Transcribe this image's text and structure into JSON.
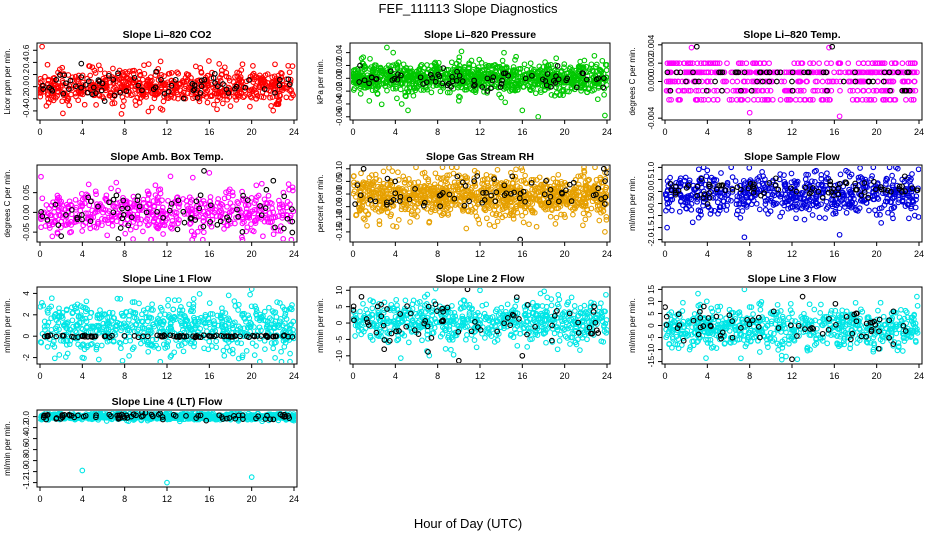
{
  "figure": {
    "title": "FEF_111113  Slope Diagnostics",
    "xlabel": "Hour of Day (UTC)"
  },
  "chart_data": [
    {
      "type": "scatter",
      "title": "Slope Li–820 CO2",
      "ylabel": "Licor ppm per min.",
      "xlabel": "",
      "xlim": [
        0,
        24
      ],
      "xticks": [
        "0",
        "4",
        "8",
        "12",
        "16",
        "20",
        "24"
      ],
      "ylim": [
        -0.55,
        0.72
      ],
      "yticks": [
        {
          "v": -0.4,
          "l": "-0.4"
        },
        {
          "v": -0.2,
          "l": "-0.2"
        },
        {
          "v": 0,
          "l": "0.0"
        },
        {
          "v": 0.2,
          "l": "0.2"
        },
        {
          "v": 0.4,
          "l": "0.4"
        },
        {
          "v": 0.6,
          "l": "0.6"
        }
      ],
      "grid": false,
      "series": [
        {
          "color": "#ff0000",
          "n": 650,
          "center": 0.0,
          "spread": 0.15,
          "shape": "normal",
          "outliers": [
            [
              0.2,
              0.66
            ],
            [
              7.7,
              -0.45
            ],
            [
              18.0,
              -0.32
            ]
          ]
        },
        {
          "color": "#000000",
          "n": 70,
          "center": 0.02,
          "spread": 0.1,
          "shape": "normal",
          "outliers": [
            [
              3.9,
              0.38
            ]
          ]
        }
      ]
    },
    {
      "type": "scatter",
      "title": "Slope Li–820 Pressure",
      "ylabel": "kPa per min.",
      "xlabel": "",
      "xlim": [
        0,
        24
      ],
      "xticks": [
        "0",
        "4",
        "8",
        "12",
        "16",
        "20",
        "24"
      ],
      "ylim": [
        -0.065,
        0.055
      ],
      "yticks": [
        {
          "v": -0.06,
          "l": "-0.06"
        },
        {
          "v": -0.04,
          "l": "-0.04"
        },
        {
          "v": -0.02,
          "l": "-0.02"
        },
        {
          "v": 0,
          "l": "0.00"
        },
        {
          "v": 0.02,
          "l": "0.02"
        },
        {
          "v": 0.04,
          "l": "0.04"
        }
      ],
      "grid": false,
      "series": [
        {
          "color": "#00c800",
          "n": 1000,
          "center": 0.0,
          "spread": 0.012,
          "shape": "normal",
          "outliers": [
            [
              3.2,
              0.048
            ],
            [
              3.8,
              0.04
            ],
            [
              4.6,
              -0.04
            ],
            [
              5.2,
              -0.05
            ],
            [
              10.0,
              -0.035
            ],
            [
              14.0,
              -0.03
            ],
            [
              16.0,
              -0.05
            ],
            [
              17.5,
              -0.06
            ],
            [
              23.8,
              -0.058
            ]
          ]
        },
        {
          "color": "#000000",
          "n": 70,
          "center": 0.0,
          "spread": 0.008,
          "shape": "normal",
          "outliers": []
        }
      ]
    },
    {
      "type": "scatter",
      "title": "Slope Li–820 Temp.",
      "ylabel": "degrees C per min.",
      "xlabel": "",
      "xlim": [
        0,
        24
      ],
      "xticks": [
        "0",
        "4",
        "8",
        "12",
        "16",
        "20",
        "24"
      ],
      "ylim": [
        -0.0042,
        0.0042
      ],
      "yticks": [
        {
          "v": -0.004,
          "l": "-0.004"
        },
        {
          "v": 0,
          "l": "0.000"
        },
        {
          "v": 0.002,
          "l": "0.002"
        },
        {
          "v": 0.004,
          "l": "0.004"
        }
      ],
      "grid": false,
      "series": [
        {
          "color": "#ff00ff",
          "n": 520,
          "center": 0.0,
          "spread": 0.0012,
          "shape": "levels",
          "levels": [
            0.001,
            0.0,
            -0.001,
            0.002,
            -0.002
          ],
          "outliers": [
            [
              2.5,
              0.0037
            ],
            [
              8.0,
              -0.0034
            ],
            [
              16.5,
              -0.0038
            ],
            [
              15.5,
              0.0037
            ]
          ]
        },
        {
          "color": "#000000",
          "n": 60,
          "center": 0.0,
          "spread": 0.001,
          "shape": "levels",
          "levels": [
            0.001,
            0.0,
            -0.001
          ],
          "outliers": [
            [
              3.0,
              0.0038
            ],
            [
              15.8,
              0.0038
            ]
          ]
        }
      ]
    },
    {
      "type": "scatter",
      "title": "Slope Amb. Box Temp.",
      "ylabel": "degrees C per min.",
      "xlabel": "",
      "xlim": [
        0,
        24
      ],
      "xticks": [
        "0",
        "4",
        "8",
        "12",
        "16",
        "20",
        "24"
      ],
      "ylim": [
        -0.075,
        0.12
      ],
      "yticks": [
        {
          "v": -0.05,
          "l": "-0.05"
        },
        {
          "v": 0,
          "l": "0.00"
        },
        {
          "v": 0.05,
          "l": "0.05"
        }
      ],
      "grid": false,
      "series": [
        {
          "color": "#ff00ff",
          "n": 520,
          "center": 0.0,
          "spread": 0.03,
          "shape": "normal",
          "outliers": [
            [
              16.0,
              0.1
            ]
          ]
        },
        {
          "color": "#000000",
          "n": 70,
          "center": 0.0,
          "spread": 0.025,
          "shape": "normal",
          "outliers": [
            [
              2.0,
              -0.06
            ],
            [
              15.5,
              0.105
            ]
          ]
        }
      ]
    },
    {
      "type": "scatter",
      "title": "Slope Gas Stream RH",
      "ylabel": "percent per min.",
      "xlabel": "",
      "xlim": [
        0,
        24
      ],
      "xticks": [
        "0",
        "4",
        "8",
        "12",
        "16",
        "20",
        "24"
      ],
      "ylim": [
        -0.19,
        0.115
      ],
      "yticks": [
        {
          "v": -0.15,
          "l": "-0.15"
        },
        {
          "v": -0.1,
          "l": "-0.10"
        },
        {
          "v": -0.05,
          "l": "-0.05"
        },
        {
          "v": 0,
          "l": "0.00"
        },
        {
          "v": 0.05,
          "l": "0.05"
        },
        {
          "v": 0.1,
          "l": "0.10"
        }
      ],
      "grid": false,
      "series": [
        {
          "color": "#e6a000",
          "n": 1000,
          "center": -0.01,
          "spread": 0.045,
          "shape": "normal",
          "outliers": [
            [
              23.8,
              -0.15
            ],
            [
              2.5,
              -0.12
            ]
          ]
        },
        {
          "color": "#000000",
          "n": 70,
          "center": 0.0,
          "spread": 0.035,
          "shape": "normal",
          "outliers": [
            [
              15.8,
              -0.18
            ],
            [
              1.0,
              0.1
            ],
            [
              23.7,
              0.1
            ]
          ]
        }
      ]
    },
    {
      "type": "scatter",
      "title": "Slope Sample Flow",
      "ylabel": "ml/min per min.",
      "xlabel": "",
      "xlim": [
        0,
        24
      ],
      "xticks": [
        "0",
        "4",
        "8",
        "12",
        "16",
        "20",
        "24"
      ],
      "ylim": [
        -2.1,
        1.1
      ],
      "yticks": [
        {
          "v": -2,
          "l": "-2.0"
        },
        {
          "v": -1.5,
          "l": "-1.5"
        },
        {
          "v": -1,
          "l": "-1.0"
        },
        {
          "v": -0.5,
          "l": "-0.5"
        },
        {
          "v": 0,
          "l": "0.0"
        },
        {
          "v": 0.5,
          "l": "0.5"
        },
        {
          "v": 1,
          "l": "1.0"
        }
      ],
      "grid": false,
      "series": [
        {
          "color": "#0000dd",
          "n": 620,
          "center": -0.1,
          "spread": 0.45,
          "shape": "normal",
          "outliers": [
            [
              7.5,
              -1.9
            ],
            [
              16.5,
              -1.8
            ],
            [
              22.0,
              0.95
            ],
            [
              0.2,
              -1.5
            ]
          ]
        },
        {
          "color": "#000000",
          "n": 80,
          "center": 0.1,
          "spread": 0.2,
          "shape": "normal",
          "outliers": []
        }
      ]
    },
    {
      "type": "scatter",
      "title": "Slope Line 1 Flow",
      "ylabel": "ml/min per min.",
      "xlabel": "",
      "xlim": [
        0,
        24
      ],
      "xticks": [
        "0",
        "4",
        "8",
        "12",
        "16",
        "20",
        "24"
      ],
      "ylim": [
        -2.6,
        4.6
      ],
      "yticks": [
        {
          "v": -2,
          "l": "-2"
        },
        {
          "v": 0,
          "l": "0"
        },
        {
          "v": 2,
          "l": "2"
        },
        {
          "v": 4,
          "l": "4"
        }
      ],
      "grid": false,
      "series": [
        {
          "color": "#00e6e6",
          "n": 650,
          "center": 0.8,
          "spread": 1.2,
          "shape": "normal",
          "outliers": [
            [
              20.0,
              4.4
            ],
            [
              7.8,
              -2.3
            ],
            [
              4.0,
              -2.0
            ]
          ]
        },
        {
          "color": "#000000",
          "n": 90,
          "center": 0.0,
          "spread": 0.06,
          "shape": "normal",
          "outliers": []
        }
      ]
    },
    {
      "type": "scatter",
      "title": "Slope Line 2 Flow",
      "ylabel": "ml/min per min.",
      "xlabel": "",
      "xlim": [
        0,
        24
      ],
      "xticks": [
        "0",
        "4",
        "8",
        "12",
        "16",
        "20",
        "24"
      ],
      "ylim": [
        -12.5,
        11
      ],
      "yticks": [
        {
          "v": -10,
          "l": "-10"
        },
        {
          "v": -5,
          "l": "-5"
        },
        {
          "v": 0,
          "l": "0"
        },
        {
          "v": 5,
          "l": "5"
        },
        {
          "v": 10,
          "l": "10"
        }
      ],
      "grid": false,
      "series": [
        {
          "color": "#00e6e6",
          "n": 650,
          "center": 0.5,
          "spread": 3.2,
          "shape": "normal",
          "outliers": [
            [
              7.8,
              10.5
            ],
            [
              12.0,
              10.0
            ]
          ]
        },
        {
          "color": "#000000",
          "n": 70,
          "center": 0.5,
          "spread": 3.2,
          "shape": "normal",
          "outliers": [
            [
              10.0,
              -11.5
            ],
            [
              0.8,
              8.0
            ],
            [
              16.0,
              -10.0
            ]
          ]
        }
      ]
    },
    {
      "type": "scatter",
      "title": "Slope Line 3 Flow",
      "ylabel": "ml/min per min.",
      "xlabel": "",
      "xlim": [
        0,
        24
      ],
      "xticks": [
        "0",
        "4",
        "8",
        "12",
        "16",
        "20",
        "24"
      ],
      "ylim": [
        -16,
        16
      ],
      "yticks": [
        {
          "v": -15,
          "l": "-15"
        },
        {
          "v": -10,
          "l": "-10"
        },
        {
          "v": -5,
          "l": "-5"
        },
        {
          "v": 0,
          "l": "0"
        },
        {
          "v": 5,
          "l": "5"
        },
        {
          "v": 10,
          "l": "10"
        },
        {
          "v": 15,
          "l": "15"
        }
      ],
      "grid": false,
      "series": [
        {
          "color": "#00e6e6",
          "n": 650,
          "center": -1.0,
          "spread": 4.5,
          "shape": "normal",
          "outliers": [
            [
              7.5,
              15.0
            ],
            [
              12.5,
              -14.0
            ],
            [
              23.8,
              12.0
            ]
          ]
        },
        {
          "color": "#000000",
          "n": 70,
          "center": 0.0,
          "spread": 4.0,
          "shape": "normal",
          "outliers": [
            [
              12.0,
              -14.0
            ],
            [
              13.0,
              12.0
            ]
          ]
        }
      ]
    },
    {
      "type": "scatter",
      "title": "Slope Line 4 (LT) Flow",
      "ylabel": "ml/min per min.",
      "xlabel": "",
      "xlim": [
        0,
        24
      ],
      "xticks": [
        "0",
        "4",
        "8",
        "12",
        "16",
        "20",
        "24"
      ],
      "ylim": [
        -1.28,
        0.12
      ],
      "yticks": [
        {
          "v": -1.2,
          "l": "-1.2"
        },
        {
          "v": -1,
          "l": "-1.0"
        },
        {
          "v": -0.8,
          "l": "-0.8"
        },
        {
          "v": -0.6,
          "l": "-0.6"
        },
        {
          "v": -0.4,
          "l": "-0.4"
        },
        {
          "v": -0.2,
          "l": "-0.2"
        },
        {
          "v": 0,
          "l": "0.0"
        }
      ],
      "grid": false,
      "series": [
        {
          "color": "#00e6e6",
          "n": 800,
          "center": 0.0,
          "spread": 0.03,
          "shape": "normal",
          "outliers": [
            [
              4.0,
              -0.98
            ],
            [
              12.0,
              -1.2
            ],
            [
              20.0,
              -1.1
            ]
          ]
        },
        {
          "color": "#000000",
          "n": 80,
          "center": 0.0,
          "spread": 0.03,
          "shape": "normal",
          "outliers": []
        }
      ]
    }
  ]
}
